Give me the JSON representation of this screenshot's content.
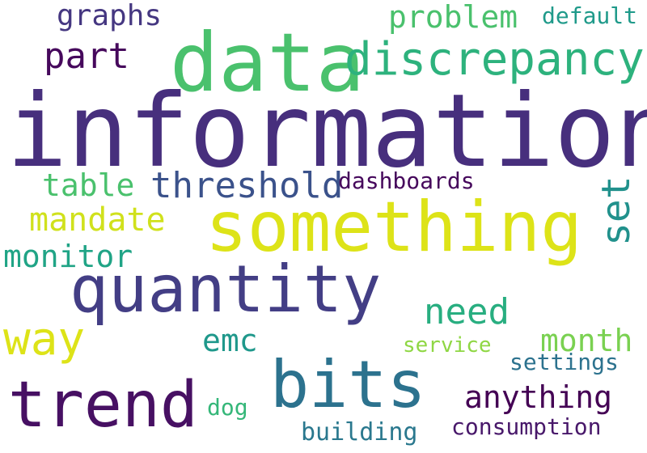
{
  "wordcloud": {
    "words": {
      "information": {
        "text": "information",
        "color": "#472f7d"
      },
      "data": {
        "text": "data",
        "color": "#4ac16d"
      },
      "something": {
        "text": "something",
        "color": "#dde318"
      },
      "quantity": {
        "text": "quantity",
        "color": "#433e85"
      },
      "bits": {
        "text": "bits",
        "color": "#2c728e"
      },
      "trend": {
        "text": "trend",
        "color": "#471063"
      },
      "discrepancy": {
        "text": "discrepancy",
        "color": "#2db27d"
      },
      "way": {
        "text": "way",
        "color": "#dde318"
      },
      "part": {
        "text": "part",
        "color": "#46085c"
      },
      "threshold": {
        "text": "threshold",
        "color": "#3b528b"
      },
      "mandate": {
        "text": "mandate",
        "color": "#d0e11c"
      },
      "need": {
        "text": "need",
        "color": "#28ae80"
      },
      "problem": {
        "text": "problem",
        "color": "#4ac16d"
      },
      "graphs": {
        "text": "graphs",
        "color": "#453781"
      },
      "monitor": {
        "text": "monitor",
        "color": "#20a486"
      },
      "month": {
        "text": "month",
        "color": "#7ad151"
      },
      "table": {
        "text": "table",
        "color": "#4ac16d"
      },
      "emc": {
        "text": "emc",
        "color": "#1f988b"
      },
      "anything": {
        "text": "anything",
        "color": "#440154"
      },
      "set": {
        "text": "set",
        "color": "#21918c"
      },
      "dashboards": {
        "text": "dashboards",
        "color": "#46085c"
      },
      "default": {
        "text": "default",
        "color": "#1f9a8a"
      },
      "service": {
        "text": "service",
        "color": "#8fd744"
      },
      "settings": {
        "text": "settings",
        "color": "#2c728e"
      },
      "dog": {
        "text": "dog",
        "color": "#35b779"
      },
      "consumption": {
        "text": "consumption",
        "color": "#48186a"
      },
      "building": {
        "text": "building",
        "color": "#2a788e"
      }
    }
  }
}
